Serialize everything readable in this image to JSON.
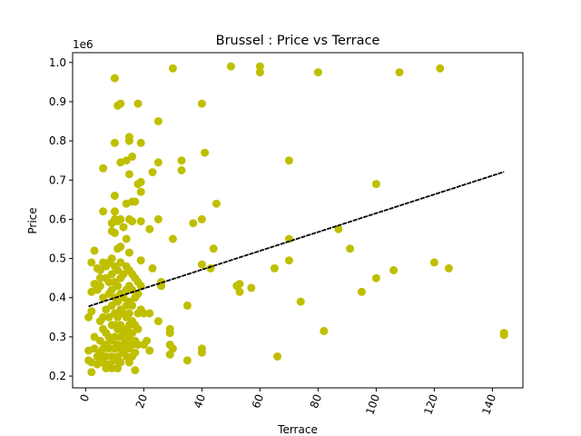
{
  "chart_data": {
    "type": "scatter",
    "title": "Brussel : Price vs Terrace",
    "xlabel": "Terrace",
    "ylabel": "Price",
    "y_offset_label": "1e6",
    "xlim": [
      -4.5,
      150.5
    ],
    "ylim": [
      0.17,
      1.025
    ],
    "x_ticks": [
      0,
      20,
      40,
      60,
      80,
      100,
      120,
      140
    ],
    "y_ticks": [
      0.2,
      0.3,
      0.4,
      0.5,
      0.6,
      0.7,
      0.8,
      0.9,
      1.0
    ],
    "x_tick_labels": [
      "0",
      "20",
      "40",
      "60",
      "80",
      "100",
      "120",
      "140"
    ],
    "y_tick_labels": [
      "0.2",
      "0.3",
      "0.4",
      "0.5",
      "0.6",
      "0.7",
      "0.8",
      "0.9",
      "1.0"
    ],
    "grid": false,
    "point_color": "#bfbf00",
    "trend_color": "#000000",
    "trendline": {
      "x": [
        1,
        144
      ],
      "y": [
        0.378,
        0.721
      ]
    },
    "points": [
      [
        1,
        0.265
      ],
      [
        1,
        0.24
      ],
      [
        1,
        0.35
      ],
      [
        2,
        0.365
      ],
      [
        2,
        0.49
      ],
      [
        2,
        0.415
      ],
      [
        2,
        0.21
      ],
      [
        2,
        0.235
      ],
      [
        3,
        0.27
      ],
      [
        3,
        0.52
      ],
      [
        3,
        0.435
      ],
      [
        3,
        0.3
      ],
      [
        4,
        0.475
      ],
      [
        4,
        0.25
      ],
      [
        4,
        0.23
      ],
      [
        4,
        0.42
      ],
      [
        5,
        0.47
      ],
      [
        5,
        0.29
      ],
      [
        5,
        0.34
      ],
      [
        5,
        0.26
      ],
      [
        5,
        0.24
      ],
      [
        5,
        0.43
      ],
      [
        5,
        0.45
      ],
      [
        6,
        0.73
      ],
      [
        6,
        0.62
      ],
      [
        6,
        0.49
      ],
      [
        6,
        0.4
      ],
      [
        6,
        0.35
      ],
      [
        6,
        0.32
      ],
      [
        6,
        0.27
      ],
      [
        6,
        0.235
      ],
      [
        7,
        0.48
      ],
      [
        7,
        0.45
      ],
      [
        7,
        0.37
      ],
      [
        7,
        0.31
      ],
      [
        7,
        0.28
      ],
      [
        7,
        0.25
      ],
      [
        7,
        0.22
      ],
      [
        8,
        0.49
      ],
      [
        8,
        0.44
      ],
      [
        8,
        0.41
      ],
      [
        8,
        0.35
      ],
      [
        8,
        0.3
      ],
      [
        8,
        0.27
      ],
      [
        8,
        0.23
      ],
      [
        9,
        0.59
      ],
      [
        9,
        0.57
      ],
      [
        9,
        0.5
      ],
      [
        9,
        0.46
      ],
      [
        9,
        0.42
      ],
      [
        9,
        0.38
      ],
      [
        9,
        0.33
      ],
      [
        9,
        0.29
      ],
      [
        9,
        0.25
      ],
      [
        9,
        0.22
      ],
      [
        10,
        0.96
      ],
      [
        10,
        0.795
      ],
      [
        10,
        0.66
      ],
      [
        10,
        0.6
      ],
      [
        10,
        0.565
      ],
      [
        10,
        0.62
      ],
      [
        10,
        0.48
      ],
      [
        10,
        0.44
      ],
      [
        10,
        0.4
      ],
      [
        10,
        0.36
      ],
      [
        10,
        0.33
      ],
      [
        10,
        0.3
      ],
      [
        10,
        0.27
      ],
      [
        10,
        0.24
      ],
      [
        11,
        0.89
      ],
      [
        11,
        0.595
      ],
      [
        11,
        0.525
      ],
      [
        11,
        0.47
      ],
      [
        11,
        0.43
      ],
      [
        11,
        0.39
      ],
      [
        11,
        0.35
      ],
      [
        11,
        0.32
      ],
      [
        11,
        0.28
      ],
      [
        11,
        0.25
      ],
      [
        11,
        0.22
      ],
      [
        12,
        0.895
      ],
      [
        12,
        0.745
      ],
      [
        12,
        0.6
      ],
      [
        12,
        0.53
      ],
      [
        12,
        0.49
      ],
      [
        12,
        0.45
      ],
      [
        12,
        0.41
      ],
      [
        12,
        0.37
      ],
      [
        12,
        0.33
      ],
      [
        12,
        0.3
      ],
      [
        12,
        0.27
      ],
      [
        12,
        0.235
      ],
      [
        13,
        0.58
      ],
      [
        13,
        0.46
      ],
      [
        13,
        0.4
      ],
      [
        13,
        0.36
      ],
      [
        13,
        0.31
      ],
      [
        13,
        0.28
      ],
      [
        13,
        0.26
      ],
      [
        14,
        0.75
      ],
      [
        14,
        0.64
      ],
      [
        14,
        0.55
      ],
      [
        14,
        0.48
      ],
      [
        14,
        0.42
      ],
      [
        14,
        0.38
      ],
      [
        14,
        0.35
      ],
      [
        14,
        0.32
      ],
      [
        14,
        0.29
      ],
      [
        14,
        0.25
      ],
      [
        15,
        0.81
      ],
      [
        15,
        0.8
      ],
      [
        15,
        0.715
      ],
      [
        15,
        0.6
      ],
      [
        15,
        0.515
      ],
      [
        15,
        0.47
      ],
      [
        15,
        0.43
      ],
      [
        15,
        0.39
      ],
      [
        15,
        0.36
      ],
      [
        15,
        0.33
      ],
      [
        15,
        0.3
      ],
      [
        15,
        0.27
      ],
      [
        15,
        0.235
      ],
      [
        16,
        0.76
      ],
      [
        16,
        0.645
      ],
      [
        16,
        0.595
      ],
      [
        16,
        0.46
      ],
      [
        16,
        0.42
      ],
      [
        16,
        0.38
      ],
      [
        16,
        0.34
      ],
      [
        16,
        0.31
      ],
      [
        16,
        0.28
      ],
      [
        16,
        0.25
      ],
      [
        17,
        0.645
      ],
      [
        17,
        0.45
      ],
      [
        17,
        0.4
      ],
      [
        17,
        0.33
      ],
      [
        17,
        0.29
      ],
      [
        17,
        0.26
      ],
      [
        17,
        0.215
      ],
      [
        18,
        0.895
      ],
      [
        18,
        0.69
      ],
      [
        18,
        0.44
      ],
      [
        18,
        0.41
      ],
      [
        18,
        0.36
      ],
      [
        18,
        0.32
      ],
      [
        18,
        0.28
      ],
      [
        19,
        0.795
      ],
      [
        19,
        0.695
      ],
      [
        19,
        0.67
      ],
      [
        19,
        0.595
      ],
      [
        19,
        0.495
      ],
      [
        19,
        0.43
      ],
      [
        19,
        0.37
      ],
      [
        20,
        0.36
      ],
      [
        20,
        0.28
      ],
      [
        21,
        0.29
      ],
      [
        22,
        0.575
      ],
      [
        22,
        0.36
      ],
      [
        22,
        0.265
      ],
      [
        23,
        0.72
      ],
      [
        23,
        0.475
      ],
      [
        25,
        0.85
      ],
      [
        25,
        0.745
      ],
      [
        25,
        0.6
      ],
      [
        25,
        0.34
      ],
      [
        26,
        0.44
      ],
      [
        26,
        0.43
      ],
      [
        29,
        0.32
      ],
      [
        29,
        0.31
      ],
      [
        29,
        0.28
      ],
      [
        29,
        0.255
      ],
      [
        30,
        0.985
      ],
      [
        30,
        0.55
      ],
      [
        30,
        0.27
      ],
      [
        33,
        0.75
      ],
      [
        33,
        0.725
      ],
      [
        35,
        0.38
      ],
      [
        35,
        0.24
      ],
      [
        37,
        0.59
      ],
      [
        40,
        0.895
      ],
      [
        40,
        0.6
      ],
      [
        40,
        0.485
      ],
      [
        40,
        0.27
      ],
      [
        40,
        0.26
      ],
      [
        41,
        0.77
      ],
      [
        43,
        0.475
      ],
      [
        44,
        0.525
      ],
      [
        45,
        0.64
      ],
      [
        50,
        0.99
      ],
      [
        52,
        0.43
      ],
      [
        53,
        0.435
      ],
      [
        53,
        0.415
      ],
      [
        57,
        0.425
      ],
      [
        60,
        0.99
      ],
      [
        60,
        0.975
      ],
      [
        65,
        0.475
      ],
      [
        66,
        0.25
      ],
      [
        70,
        0.75
      ],
      [
        70,
        0.55
      ],
      [
        70,
        0.495
      ],
      [
        74,
        0.39
      ],
      [
        80,
        0.975
      ],
      [
        82,
        0.315
      ],
      [
        87,
        0.575
      ],
      [
        91,
        0.525
      ],
      [
        95,
        0.415
      ],
      [
        100,
        0.69
      ],
      [
        100,
        0.45
      ],
      [
        106,
        0.47
      ],
      [
        108,
        0.975
      ],
      [
        120,
        0.49
      ],
      [
        122,
        0.985
      ],
      [
        125,
        0.475
      ],
      [
        144,
        0.31
      ],
      [
        144,
        0.305
      ]
    ]
  }
}
